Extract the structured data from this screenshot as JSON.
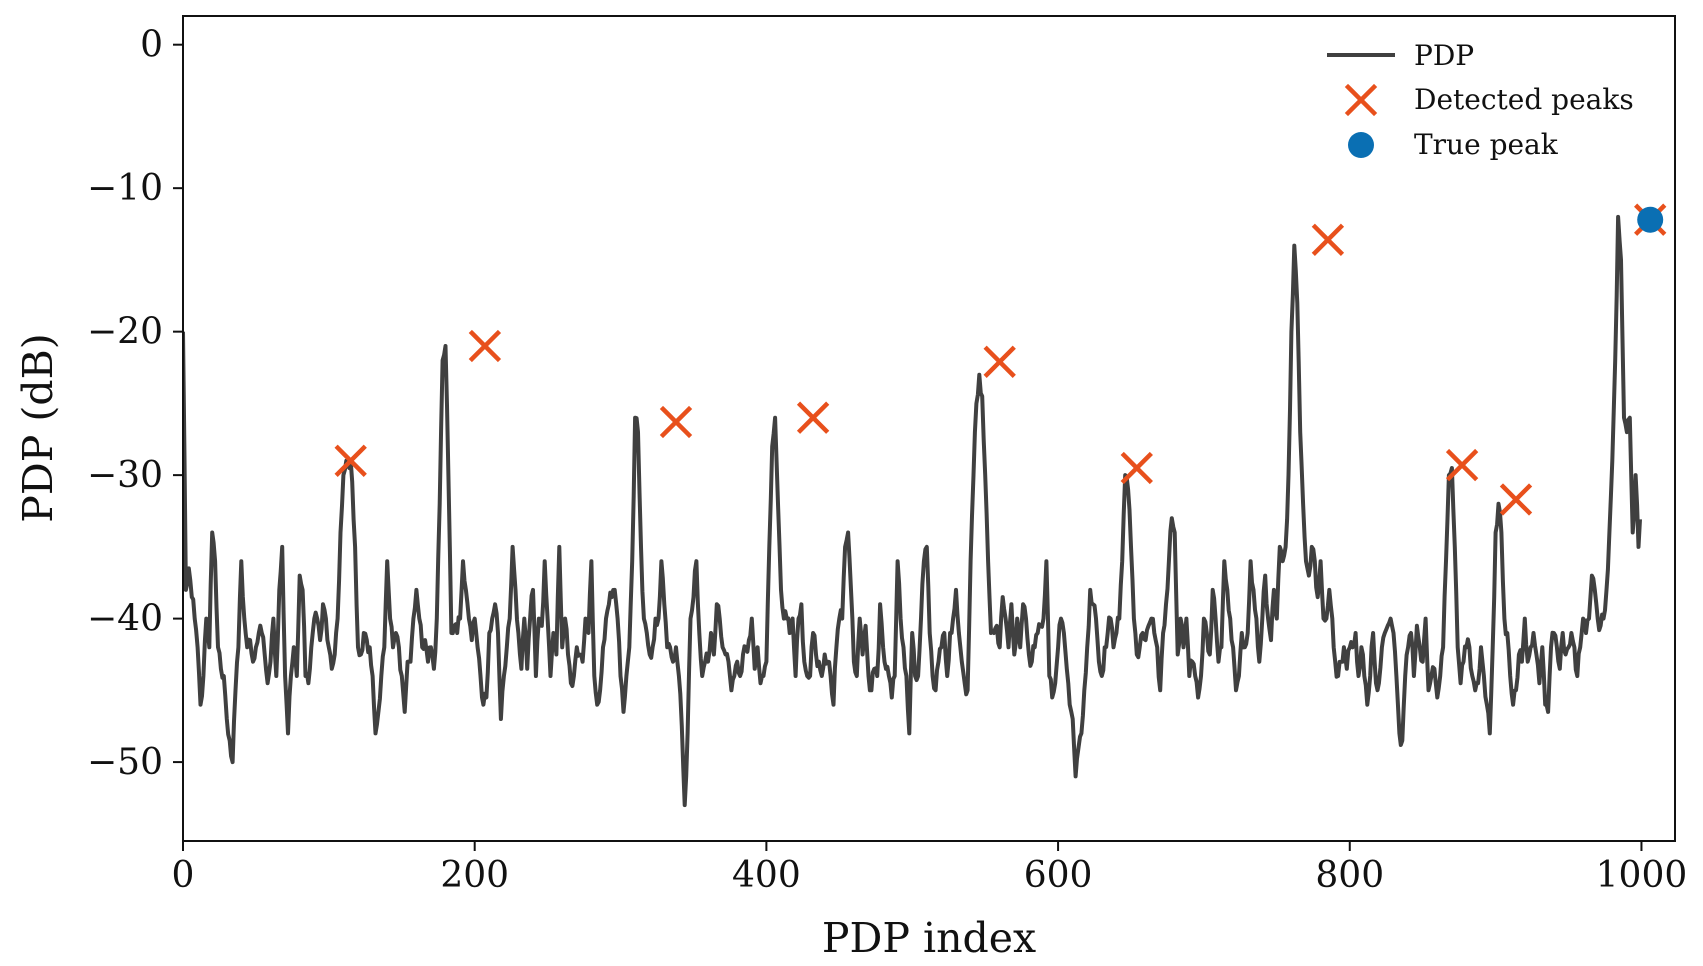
{
  "chart_data": {
    "type": "line",
    "xlabel": "PDP index",
    "ylabel": "PDP (dB)",
    "xlim": [
      0,
      1023
    ],
    "ylim": [
      -55.5,
      2
    ],
    "x_ticks": [
      0,
      200,
      400,
      600,
      800,
      1000
    ],
    "y_ticks": [
      0,
      -10,
      -20,
      -30,
      -40,
      -50
    ],
    "grid": false,
    "legend_position": "top-right",
    "legend": [
      "PDP",
      "Detected peaks",
      "True peak"
    ],
    "colors": {
      "pdp": "#404040",
      "detected_peaks": "#e8501c",
      "true_peak": "#0a6fb3"
    },
    "series": [
      {
        "name": "PDP",
        "anchors_x": [
          0,
          2,
          4,
          6,
          8,
          10,
          12,
          14,
          16,
          18,
          20,
          22,
          24,
          26,
          28,
          30,
          32,
          34,
          36,
          38,
          40,
          42,
          44,
          46,
          48,
          50,
          52,
          54,
          56,
          58,
          60,
          62,
          64,
          66,
          68,
          70,
          72,
          74,
          76,
          78,
          80,
          82,
          84,
          86,
          88,
          90,
          92,
          94,
          96,
          98,
          100,
          102,
          104,
          106,
          108,
          110,
          112,
          114,
          115,
          118,
          120,
          122,
          124,
          126,
          128,
          130,
          132,
          134,
          136,
          138,
          140,
          142,
          144,
          146,
          148,
          150,
          152,
          154,
          156,
          158,
          160,
          162,
          164,
          166,
          168,
          170,
          172,
          174,
          176,
          178,
          180,
          182,
          184,
          186,
          188,
          190,
          192,
          194,
          196,
          198,
          200,
          202,
          204,
          206,
          208,
          210,
          212,
          214,
          216,
          218,
          220,
          222,
          224,
          226,
          228,
          230,
          232,
          234,
          236,
          238,
          240,
          242,
          244,
          246,
          248,
          250,
          252,
          254,
          256,
          258,
          260,
          262,
          264,
          266,
          268,
          270,
          272,
          274,
          276,
          278,
          280,
          282,
          284,
          286,
          288,
          290,
          292,
          294,
          296,
          298,
          300,
          302,
          304,
          306,
          308,
          310,
          312,
          314,
          316,
          318,
          320,
          322,
          324,
          326,
          328,
          330,
          332,
          334,
          336,
          338,
          340,
          342,
          344,
          346,
          348,
          350,
          352,
          354,
          356,
          358,
          360,
          362,
          364,
          366,
          368,
          370,
          372,
          374,
          376,
          378,
          380,
          382,
          384,
          386,
          388,
          390,
          392,
          394,
          396,
          398,
          400,
          402,
          404,
          406,
          408,
          410,
          412,
          414,
          416,
          418,
          420,
          422,
          424,
          426,
          428,
          430,
          432,
          434,
          436,
          438,
          440,
          442,
          444,
          446,
          448,
          450,
          452,
          454,
          456,
          458,
          460,
          462,
          464,
          466,
          468,
          470,
          472,
          474,
          476,
          478,
          480,
          482,
          484,
          486,
          488,
          490,
          492,
          494,
          496,
          498,
          500,
          502,
          504,
          506,
          508,
          510,
          512,
          514,
          516,
          518,
          520,
          522,
          524,
          526,
          528,
          530,
          532,
          534,
          536,
          538,
          540,
          542,
          544,
          546,
          548,
          550,
          552,
          554,
          556,
          558,
          560,
          562,
          564,
          566,
          568,
          570,
          572,
          574,
          576,
          578,
          580,
          582,
          584,
          586,
          588,
          590,
          592,
          594,
          596,
          598,
          600,
          602,
          604,
          606,
          608,
          610,
          612,
          614,
          616,
          618,
          620,
          622,
          624,
          626,
          628,
          630,
          632,
          634,
          636,
          638,
          640,
          642,
          644,
          646,
          648,
          650,
          652,
          654,
          656,
          658,
          660,
          662,
          664,
          666,
          668,
          670,
          672,
          674,
          676,
          678,
          680,
          682,
          684,
          686,
          688,
          690,
          692,
          694,
          696,
          698,
          700,
          702,
          704,
          706,
          708,
          710,
          712,
          714,
          716,
          718,
          720,
          722,
          724,
          726,
          728,
          730,
          732,
          734,
          736,
          738,
          740,
          742,
          744,
          746,
          748,
          750,
          752,
          754,
          756,
          758,
          760,
          762,
          764,
          766,
          768,
          770,
          772,
          774,
          776,
          778,
          780,
          782,
          784,
          786,
          788,
          790,
          792,
          794,
          796,
          798,
          800,
          802,
          804,
          806,
          808,
          810,
          812,
          814,
          816,
          818,
          820,
          822,
          824,
          826,
          828,
          830,
          832,
          834,
          836,
          838,
          840,
          842,
          844,
          846,
          848,
          850,
          852,
          854,
          856,
          858,
          860,
          862,
          864,
          866,
          868,
          870,
          872,
          874,
          876,
          878,
          880,
          882,
          884,
          886,
          888,
          890,
          892,
          894,
          896,
          898,
          900,
          902,
          904,
          906,
          908,
          910,
          912,
          914,
          916,
          918,
          920,
          922,
          924,
          926,
          928,
          930,
          932,
          934,
          936,
          938,
          940,
          942,
          944,
          946,
          948,
          950,
          952,
          954,
          956,
          958,
          960,
          962,
          964,
          966,
          968,
          970,
          972,
          974,
          976,
          978,
          980,
          982,
          984,
          986,
          988,
          990,
          992,
          994,
          996,
          998,
          1000,
          1002,
          1004,
          1006,
          1008,
          1010,
          1012,
          1014,
          1016,
          1018,
          1020,
          1022,
          1023
        ],
        "anchors_y": [
          -20,
          -38,
          -36.5,
          -38.5,
          -40,
          -42,
          -46,
          -44,
          -40,
          -42,
          -34,
          -36,
          -42,
          -43.5,
          -44,
          -47,
          -48.5,
          -50,
          -45,
          -42,
          -36,
          -40,
          -42,
          -41.5,
          -43,
          -42,
          -41,
          -41,
          -42.5,
          -44.5,
          -43,
          -40,
          -44,
          -38,
          -35,
          -44,
          -48,
          -44,
          -42,
          -44,
          -37,
          -38,
          -44,
          -44.5,
          -42,
          -40,
          -40,
          -41.5,
          -39,
          -40,
          -42,
          -43.5,
          -42.5,
          -40,
          -34,
          -30,
          -29,
          -29.5,
          -29,
          -35,
          -42,
          -42.5,
          -41,
          -41.5,
          -42,
          -44,
          -48,
          -46.5,
          -44,
          -42,
          -36,
          -40,
          -42,
          -41,
          -42,
          -44,
          -46.5,
          -43,
          -43,
          -40,
          -38,
          -40,
          -42,
          -41.5,
          -43,
          -42,
          -43.5,
          -40,
          -32,
          -22,
          -21,
          -30,
          -41,
          -40.5,
          -41,
          -40,
          -36,
          -38,
          -40,
          -41.5,
          -40,
          -42,
          -44,
          -46,
          -45.5,
          -41,
          -40,
          -39,
          -41,
          -47,
          -44,
          -42,
          -40,
          -35,
          -38,
          -41,
          -43.5,
          -40,
          -43.5,
          -40,
          -38,
          -44,
          -40,
          -40.5,
          -36,
          -40,
          -44,
          -41,
          -42.5,
          -35,
          -42,
          -40,
          -42.5,
          -44.5,
          -44,
          -42,
          -42.5,
          -43,
          -40,
          -41,
          -36,
          -44,
          -46,
          -45,
          -42,
          -40,
          -39,
          -38.5,
          -38,
          -40,
          -44,
          -46.5,
          -44,
          -42,
          -36,
          -26,
          -27,
          -35,
          -40,
          -41,
          -42.5,
          -42,
          -40,
          -40,
          -36,
          -39,
          -42,
          -42,
          -43,
          -42,
          -44,
          -47.5,
          -53,
          -48,
          -40,
          -38.5,
          -36,
          -41,
          -44,
          -43,
          -43,
          -41,
          -42.5,
          -39,
          -40,
          -42,
          -42.5,
          -43,
          -45,
          -44,
          -43,
          -44,
          -42.5,
          -42,
          -41.5,
          -40,
          -43.5,
          -42,
          -44.5,
          -44,
          -43,
          -35,
          -28,
          -26,
          -32,
          -38,
          -40,
          -40,
          -41,
          -40,
          -44,
          -40,
          -39,
          -43,
          -44,
          -44,
          -41,
          -42.5,
          -43,
          -44,
          -42.5,
          -43,
          -44,
          -46,
          -42,
          -40,
          -40,
          -35,
          -34,
          -38,
          -43,
          -44,
          -40,
          -42.5,
          -40.5,
          -44,
          -45,
          -43.5,
          -44,
          -39,
          -42,
          -43.5,
          -44,
          -45.5,
          -44,
          -36,
          -40,
          -42,
          -44,
          -48,
          -41,
          -44,
          -44,
          -40,
          -36,
          -35,
          -41,
          -44,
          -45,
          -43,
          -42,
          -41,
          -44,
          -41,
          -40,
          -38,
          -41,
          -43,
          -44.5,
          -45,
          -36,
          -30,
          -25,
          -23,
          -24.5,
          -30,
          -36,
          -41,
          -41,
          -40.5,
          -42,
          -38.5,
          -40,
          -42,
          -39,
          -42.5,
          -40,
          -42,
          -39,
          -40,
          -42.5,
          -43,
          -42,
          -41,
          -40.5,
          -40,
          -36,
          -44,
          -45.5,
          -44.5,
          -42,
          -40,
          -41,
          -43.5,
          -46,
          -47,
          -51,
          -49,
          -48,
          -45,
          -42,
          -38,
          -39,
          -40,
          -43,
          -44,
          -42,
          -41,
          -40,
          -42,
          -41,
          -40,
          -36,
          -30,
          -31,
          -35,
          -40,
          -42.5,
          -42,
          -41,
          -41.5,
          -40.5,
          -40,
          -41,
          -42,
          -45,
          -41,
          -39,
          -36,
          -33,
          -34,
          -42.5,
          -40,
          -42,
          -40,
          -44,
          -43,
          -44,
          -45.5,
          -44,
          -40,
          -41,
          -42.5,
          -38,
          -40,
          -43,
          -42,
          -36,
          -38,
          -40,
          -42,
          -45,
          -44,
          -41,
          -42,
          -41,
          -36,
          -38,
          -40,
          -43,
          -40,
          -37,
          -40,
          -41.5,
          -38,
          -40,
          -35,
          -36,
          -35,
          -30,
          -20,
          -14,
          -18,
          -27,
          -32,
          -36,
          -37,
          -35,
          -36,
          -38.5,
          -36,
          -40,
          -40,
          -38,
          -40,
          -43,
          -44,
          -43,
          -42,
          -43.5,
          -42,
          -42,
          -41,
          -44,
          -42,
          -44,
          -46,
          -44,
          -41,
          -44.5,
          -44.5,
          -42,
          -41,
          -40.5,
          -40,
          -41,
          -44,
          -48,
          -48.5,
          -44,
          -42,
          -41,
          -44,
          -40.5,
          -42,
          -43,
          -40,
          -45,
          -44,
          -43.5,
          -45.5,
          -44,
          -42,
          -36,
          -30,
          -29.5,
          -35,
          -42,
          -44.5,
          -43,
          -42,
          -42,
          -44,
          -45,
          -44.5,
          -42,
          -44,
          -46,
          -48,
          -42,
          -34,
          -32,
          -34,
          -40,
          -41,
          -44,
          -46,
          -45,
          -42.5,
          -43,
          -40,
          -43,
          -42,
          -41,
          -42.5,
          -44.5,
          -42,
          -46,
          -46.5,
          -42,
          -41,
          -42,
          -43.5,
          -41,
          -42.5,
          -42,
          -41,
          -42,
          -44,
          -42,
          -40,
          -41,
          -40,
          -37,
          -38,
          -40,
          -40.5,
          -40,
          -38,
          -34,
          -29,
          -22,
          -12,
          -15,
          -26,
          -27,
          -26,
          -34,
          -30,
          -35,
          -30
        ]
      }
    ],
    "detected_peaks": [
      {
        "x": 115,
        "y": -29
      },
      {
        "x": 207,
        "y": -21
      },
      {
        "x": 338,
        "y": -26.3
      },
      {
        "x": 432,
        "y": -26
      },
      {
        "x": 560,
        "y": -22.1
      },
      {
        "x": 654,
        "y": -29.5
      },
      {
        "x": 785,
        "y": -13.6
      },
      {
        "x": 877,
        "y": -29.3
      },
      {
        "x": 914,
        "y": -31.7
      },
      {
        "x": 1006,
        "y": -12.2
      }
    ],
    "true_peak": {
      "x": 1006,
      "y": -12.2
    }
  }
}
